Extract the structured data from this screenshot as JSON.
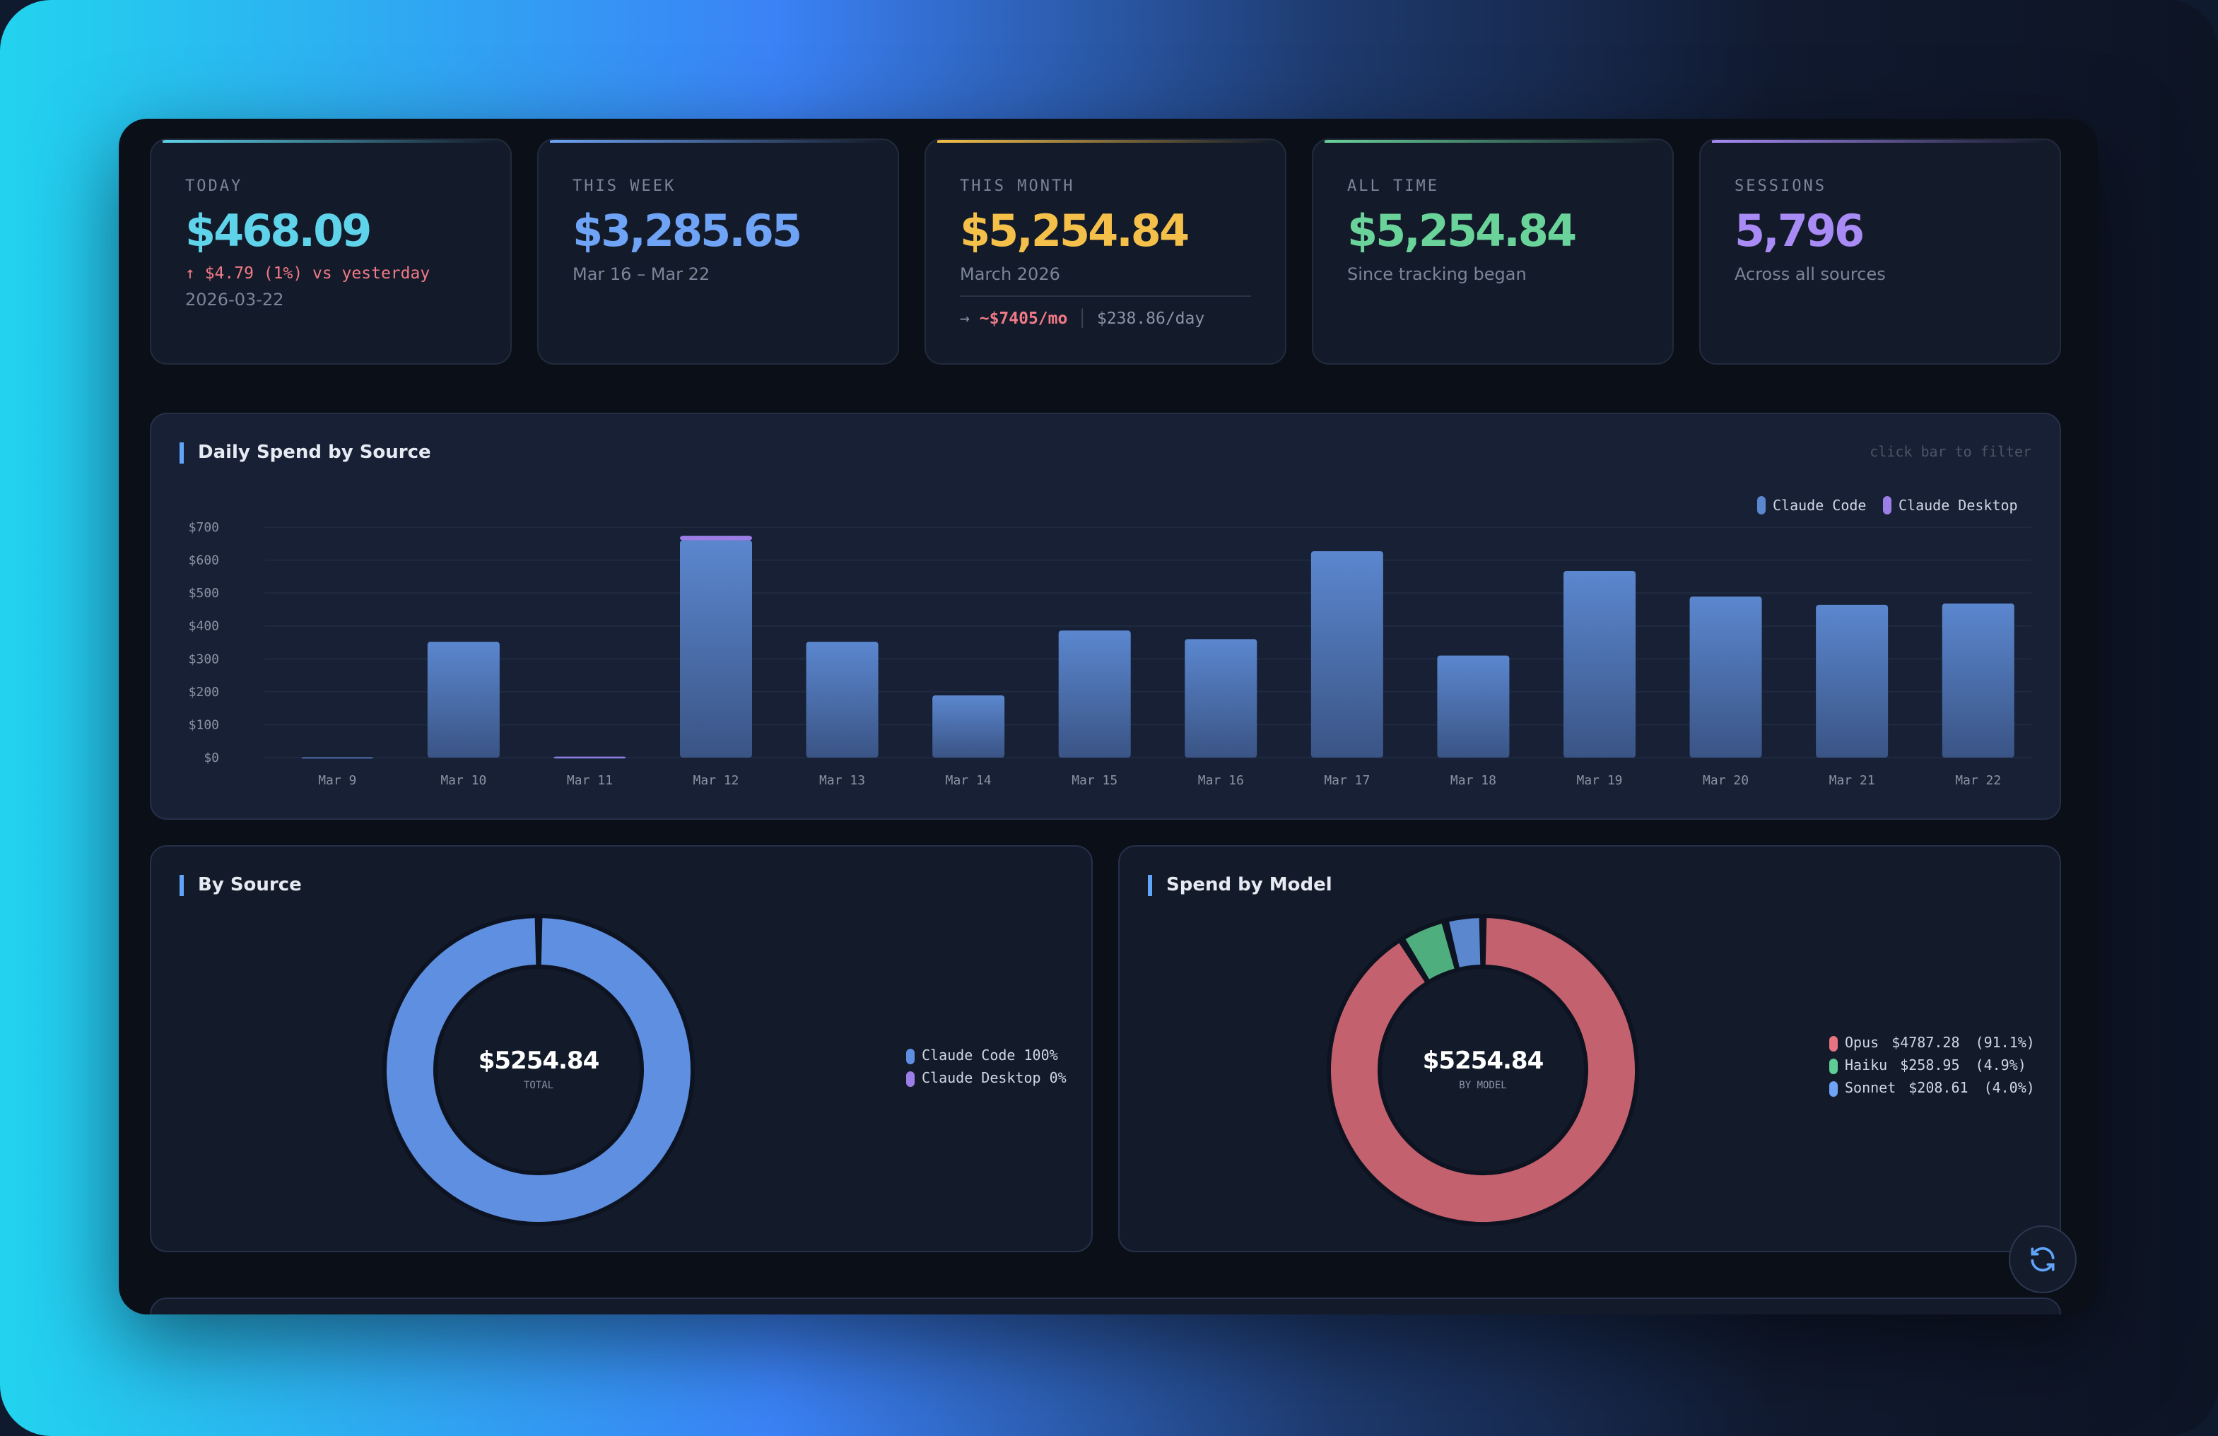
{
  "cards": [
    {
      "label": "TODAY",
      "value": "$468.09",
      "color": "#5fd3ea",
      "delta": "↑ $4.79 (1%) vs yesterday",
      "sub": "2026-03-22"
    },
    {
      "label": "THIS WEEK",
      "value": "$3,285.65",
      "color": "#6ea3f5",
      "sub": "Mar 16 – Mar 22"
    },
    {
      "label": "THIS MONTH",
      "value": "$5,254.84",
      "color": "#f5c04a",
      "sub": "March 2026",
      "projection": "~$7405/mo",
      "per_day": "$238.86/day"
    },
    {
      "label": "ALL TIME",
      "value": "$5,254.84",
      "color": "#6ad39a",
      "sub": "Since tracking began"
    },
    {
      "label": "SESSIONS",
      "value": "5,796",
      "color": "#a88bf5",
      "sub": "Across all sources"
    }
  ],
  "daily": {
    "title": "Daily Spend by Source",
    "hint": "click bar to filter"
  },
  "by_source": {
    "title": "By Source",
    "center_value": "$5254.84",
    "center_label": "TOTAL",
    "legend": [
      {
        "label": "Claude Code 100%",
        "color": "#5f8fe0"
      },
      {
        "label": "Claude Desktop 0%",
        "color": "#9b7fe6"
      }
    ]
  },
  "by_model": {
    "title": "Spend by Model",
    "center_value": "$5254.84",
    "center_label": "BY MODEL",
    "legend": [
      {
        "name": "Opus",
        "amount": "$4787.28",
        "pct": "(91.1%)",
        "color": "#e87482"
      },
      {
        "name": "Haiku",
        "amount": "$258.95",
        "pct": "(4.9%)",
        "color": "#5fce96"
      },
      {
        "name": "Sonnet",
        "amount": "$208.61",
        "pct": "(4.0%)",
        "color": "#6ea3f5"
      }
    ]
  },
  "refresh_icon": "refresh-icon",
  "chart_data": [
    {
      "type": "bar",
      "stacked": true,
      "title": "Daily Spend by Source",
      "ylim": [
        0,
        700
      ],
      "yticks": [
        "$0",
        "$100",
        "$200",
        "$300",
        "$400",
        "$500",
        "$600",
        "$700"
      ],
      "categories": [
        "Mar 9",
        "Mar 10",
        "Mar 11",
        "Mar 12",
        "Mar 13",
        "Mar 14",
        "Mar 15",
        "Mar 16",
        "Mar 17",
        "Mar 18",
        "Mar 19",
        "Mar 20",
        "Mar 21",
        "Mar 22"
      ],
      "series": [
        {
          "name": "Claude Code",
          "color": "#5b87cf",
          "values": [
            1,
            352,
            1,
            660,
            352,
            189,
            386,
            360,
            627,
            310,
            567,
            489,
            464,
            468
          ]
        },
        {
          "name": "Claude Desktop",
          "color": "#9b7fe6",
          "values": [
            0,
            0,
            2,
            14,
            0,
            0,
            0,
            0,
            0,
            0,
            0,
            0,
            0,
            0
          ]
        }
      ],
      "legend": "top-right",
      "grid": true
    },
    {
      "type": "pie",
      "title": "By Source",
      "labels": [
        "Claude Code",
        "Claude Desktop"
      ],
      "values": [
        100,
        0
      ],
      "colors": [
        "#5f8fe0",
        "#9b7fe6"
      ]
    },
    {
      "type": "pie",
      "title": "Spend by Model",
      "labels": [
        "Opus",
        "Haiku",
        "Sonnet"
      ],
      "values": [
        4787.28,
        258.95,
        208.61
      ],
      "colors": [
        "#c4616e",
        "#4fae7d",
        "#5b87cf"
      ]
    }
  ]
}
